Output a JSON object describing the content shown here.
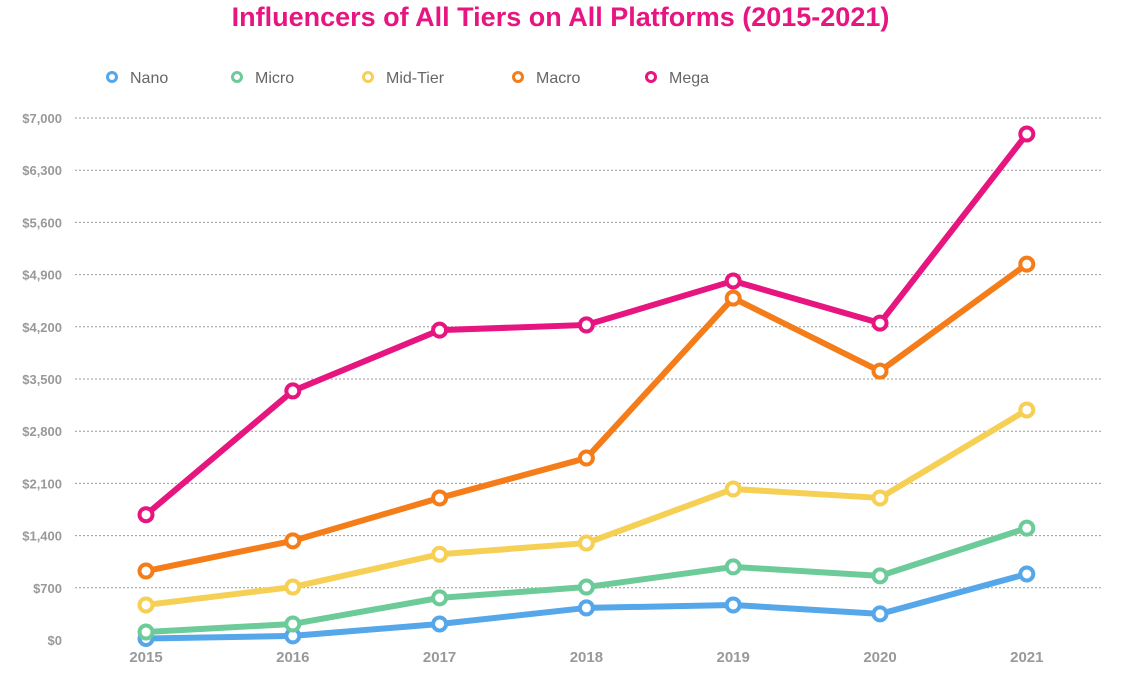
{
  "chart_data": {
    "type": "line",
    "title": "Influencers of All Tiers on All Platforms (2015-2021)",
    "xlabel": "",
    "ylabel": "",
    "categories": [
      "2015",
      "2016",
      "2017",
      "2018",
      "2019",
      "2020",
      "2021"
    ],
    "ylim": [
      0,
      7000
    ],
    "yticks": [
      0,
      700,
      1400,
      2100,
      2800,
      3500,
      4200,
      4900,
      5600,
      6300,
      7000
    ],
    "ytick_labels": [
      "$0",
      "$700",
      "$1,400",
      "$2,100",
      "$2,800",
      "$3,500",
      "$4,200",
      "$4,900",
      "$5,600",
      "$6,300",
      "$7,000"
    ],
    "grid": "horizontal dotted",
    "legend": "top-left",
    "series": [
      {
        "name": "Nano",
        "color": "#55a7ea",
        "values": [
          20,
          55,
          215,
          430,
          470,
          350,
          885
        ]
      },
      {
        "name": "Micro",
        "color": "#6ccb98",
        "values": [
          107,
          215,
          565,
          710,
          980,
          860,
          1500
        ]
      },
      {
        "name": "Mid-Tier",
        "color": "#f6cf55",
        "values": [
          470,
          710,
          1150,
          1300,
          2025,
          1905,
          3085
        ]
      },
      {
        "name": "Macro",
        "color": "#f47d1a",
        "values": [
          925,
          1330,
          1905,
          2440,
          4585,
          3605,
          5040
        ]
      },
      {
        "name": "Mega",
        "color": "#e6157f",
        "values": [
          1680,
          3340,
          4155,
          4225,
          4815,
          4250,
          6785
        ]
      }
    ]
  }
}
